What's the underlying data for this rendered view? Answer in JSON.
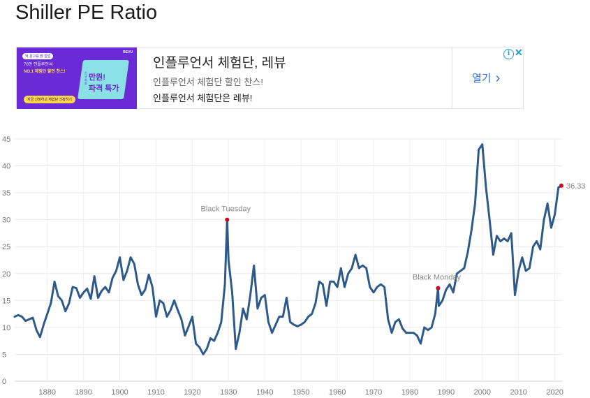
{
  "page": {
    "title": "Shiller PE Ratio"
  },
  "ad": {
    "headline": "인플루언서 체험단, 레뷰",
    "subline": "인플루언서 체험단 할인 찬스!",
    "subline2": "인플루언서 체험단은 레뷰!",
    "open_label": "열기",
    "banner": {
      "brand": "REVU",
      "pill": "억 광고를 밝 힘업",
      "line1": "70만 인플루언서",
      "line2": "NO.1 체험단 할인 찬스!",
      "tile_small": "신규 회원",
      "tile_line1": "만원!",
      "tile_line2": "파격 특가",
      "cta": "지금 신청하고 체험단 신청하기"
    },
    "icons": {
      "info": "info-icon",
      "close": "close-icon",
      "chevron": "chevron-right-icon"
    }
  },
  "chart_data": {
    "type": "line",
    "title": "",
    "xlabel": "",
    "ylabel": "",
    "xlim": [
      1871,
      2022
    ],
    "ylim": [
      0,
      45
    ],
    "xticks": [
      1880,
      1890,
      1900,
      1910,
      1920,
      1930,
      1940,
      1950,
      1960,
      1970,
      1980,
      1990,
      2000,
      2010,
      2020
    ],
    "yticks": [
      0,
      5,
      10,
      15,
      20,
      25,
      30,
      35,
      40,
      45
    ],
    "grid": true,
    "colors": {
      "line": "#2d5a8a",
      "marker": "#d0021b"
    },
    "series": [
      {
        "x": [
          1871,
          1872,
          1873,
          1874,
          1875,
          1876,
          1877,
          1878,
          1879,
          1880,
          1881,
          1882,
          1883,
          1884,
          1885,
          1886,
          1887,
          1888,
          1889,
          1890,
          1891,
          1892,
          1893,
          1894,
          1895,
          1896,
          1897,
          1898,
          1899,
          1900,
          1901,
          1902,
          1903,
          1904,
          1905,
          1906,
          1907,
          1908,
          1909,
          1910,
          1911,
          1912,
          1913,
          1914,
          1915,
          1916,
          1917,
          1918,
          1919,
          1920,
          1921,
          1922,
          1923,
          1924,
          1925,
          1926,
          1927,
          1928,
          1929,
          1929.6,
          1930,
          1931,
          1932,
          1933,
          1934,
          1935,
          1936,
          1937,
          1938,
          1939,
          1940,
          1941,
          1942,
          1943,
          1944,
          1945,
          1946,
          1947,
          1948,
          1949,
          1950,
          1951,
          1952,
          1953,
          1954,
          1955,
          1956,
          1957,
          1958,
          1959,
          1960,
          1961,
          1962,
          1963,
          1964,
          1965,
          1966,
          1967,
          1968,
          1969,
          1970,
          1971,
          1972,
          1973,
          1974,
          1975,
          1976,
          1977,
          1978,
          1979,
          1980,
          1981,
          1982,
          1983,
          1984,
          1985,
          1986,
          1987,
          1987.8,
          1988,
          1989,
          1990,
          1991,
          1992,
          1993,
          1994,
          1995,
          1996,
          1997,
          1998,
          1999,
          2000,
          2001,
          2002,
          2003,
          2004,
          2005,
          2006,
          2007,
          2008,
          2009,
          2010,
          2011,
          2012,
          2013,
          2014,
          2015,
          2016,
          2017,
          2018,
          2019,
          2020,
          2021,
          2021.8
        ],
        "y": [
          12.0,
          12.3,
          12.0,
          11.2,
          11.5,
          11.8,
          9.5,
          8.2,
          10.5,
          12.5,
          14.5,
          18.5,
          15.8,
          15.0,
          13.0,
          14.5,
          17.5,
          17.3,
          15.5,
          16.5,
          17.2,
          15.3,
          19.5,
          15.5,
          16.8,
          17.5,
          16.5,
          19.2,
          20.5,
          23.0,
          18.8,
          20.5,
          23.0,
          21.8,
          18.0,
          16.0,
          17.0,
          19.8,
          17.5,
          12.0,
          15.0,
          14.5,
          12.0,
          13.2,
          15.0,
          13.2,
          11.5,
          8.5,
          10.2,
          12.0,
          7.0,
          6.3,
          5.0,
          6.0,
          8.0,
          7.5,
          9.0,
          11.0,
          18.0,
          30.0,
          22.5,
          16.5,
          6.0,
          9.0,
          13.5,
          11.5,
          16.0,
          21.5,
          13.5,
          15.5,
          16.0,
          11.0,
          9.0,
          10.5,
          12.0,
          12.0,
          15.5,
          11.0,
          10.5,
          10.2,
          10.5,
          11.0,
          12.0,
          12.5,
          14.5,
          18.5,
          18.0,
          14.0,
          18.5,
          18.5,
          17.5,
          21.0,
          17.5,
          20.0,
          21.0,
          23.5,
          21.0,
          21.5,
          21.0,
          17.5,
          16.5,
          17.5,
          18.0,
          17.5,
          11.5,
          9.0,
          11.0,
          11.5,
          9.8,
          9.0,
          9.0,
          9.0,
          8.5,
          7.0,
          10.0,
          9.5,
          10.0,
          12.5,
          17.3,
          14.0,
          15.0,
          17.0,
          18.0,
          16.5,
          20.0,
          20.5,
          21.0,
          24.0,
          28.0,
          33.0,
          43.0,
          44.0,
          36.0,
          30.0,
          23.5,
          27.0,
          26.0,
          26.5,
          26.0,
          27.5,
          16.0,
          20.5,
          23.0,
          20.5,
          21.0,
          25.0,
          26.0,
          24.5,
          30.0,
          33.0,
          28.5,
          31.0,
          36.0,
          36.33
        ]
      }
    ],
    "annotations": [
      {
        "label": "Black Tuesday",
        "x": 1929.6,
        "y": 30.0
      },
      {
        "label": "Black Monday",
        "x": 1987.8,
        "y": 17.3
      }
    ],
    "end_label": {
      "value": "36.33",
      "x": 2021.8,
      "y": 36.33
    }
  }
}
